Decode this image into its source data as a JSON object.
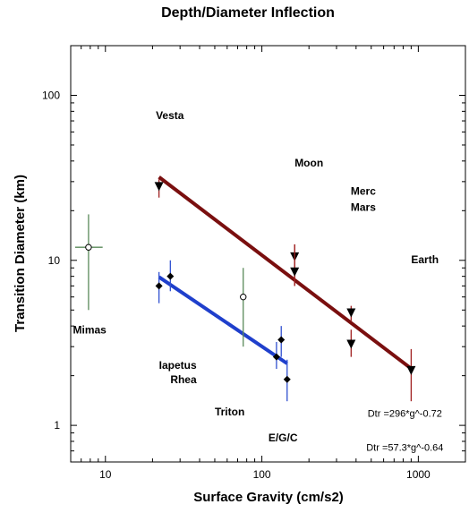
{
  "chart_data": {
    "type": "scatter",
    "title": "Depth/Diameter Inflection",
    "xlabel": "Surface Gravity (cm/s2)",
    "ylabel": "Transition Diameter (km)",
    "xscale": "log",
    "yscale": "log",
    "xlim": [
      6,
      2000
    ],
    "ylim": [
      0.6,
      200
    ],
    "xticks": [
      10,
      100,
      1000
    ],
    "xtick_labels": [
      "10",
      "100",
      "1000"
    ],
    "yticks": [
      1,
      10,
      100
    ],
    "ytick_labels": [
      "1",
      "10",
      "100"
    ],
    "grid": false,
    "colors": {
      "red_fit": "#7a0f0f",
      "blue_fit": "#1f3fcc",
      "red_err": "#a02020",
      "blue_err": "#3050d0",
      "green_err": "#5a8a5a",
      "marker": "#000000"
    },
    "annotations": [
      {
        "text": "Vesta",
        "x": 21,
        "y": 72
      },
      {
        "text": "Moon",
        "x": 162,
        "y": 37
      },
      {
        "text": "Merc",
        "x": 370,
        "y": 25
      },
      {
        "text": "Mars",
        "x": 370,
        "y": 20
      },
      {
        "text": "Earth",
        "x": 900,
        "y": 9.6
      },
      {
        "text": "Mimas",
        "x": 6.2,
        "y": 3.6
      },
      {
        "text": "Iapetus",
        "x": 22,
        "y": 2.2
      },
      {
        "text": "Rhea",
        "x": 26,
        "y": 1.8
      },
      {
        "text": "Triton",
        "x": 50,
        "y": 1.15
      },
      {
        "text": "E/G/C",
        "x": 110,
        "y": 0.8
      }
    ],
    "equations": [
      {
        "text": "Dtr =296*g^-0.72",
        "x": 820,
        "y": 1.13
      },
      {
        "text": "Dtr =57.3*g^-0.64",
        "x": 820,
        "y": 0.7
      }
    ],
    "series": [
      {
        "marker": "triangle-down",
        "color": "#000000",
        "err_color": "#a02020",
        "points": [
          {
            "x": 22,
            "y": 28,
            "ylo": 24,
            "yhi": 31
          },
          {
            "x": 162,
            "y": 10.5,
            "ylo": 7,
            "yhi": 12.5
          },
          {
            "x": 162,
            "y": 8.5,
            "ylo": 7,
            "yhi": 12.5
          },
          {
            "x": 372,
            "y": 4.8,
            "ylo": 4.3,
            "yhi": 5.3
          },
          {
            "x": 372,
            "y": 3.1,
            "ylo": 2.6,
            "yhi": 3.8
          },
          {
            "x": 900,
            "y": 2.15,
            "ylo": 1.4,
            "yhi": 2.9
          }
        ]
      },
      {
        "marker": "diamond",
        "color": "#000000",
        "err_color": "#3050d0",
        "points": [
          {
            "x": 22,
            "y": 7,
            "ylo": 5.5,
            "yhi": 8.5
          },
          {
            "x": 26,
            "y": 8,
            "ylo": 6.5,
            "yhi": 10
          },
          {
            "x": 124,
            "y": 2.6,
            "ylo": 2.2,
            "yhi": 3.2
          },
          {
            "x": 133,
            "y": 3.3,
            "ylo": 2.6,
            "yhi": 4
          },
          {
            "x": 145,
            "y": 1.9,
            "ylo": 1.4,
            "yhi": 2.5
          }
        ]
      },
      {
        "marker": "circle-open",
        "color": "#000000",
        "err_color": "#5a8a5a",
        "points": [
          {
            "x": 7.8,
            "y": 12,
            "ylo": 5,
            "yhi": 19,
            "xlo": 6.4,
            "xhi": 9.6
          },
          {
            "x": 76,
            "y": 6,
            "ylo": 3,
            "yhi": 9
          }
        ]
      }
    ],
    "fits": [
      {
        "a": 296,
        "b": -0.72,
        "x_range": [
          22,
          920
        ],
        "color": "#7a0f0f"
      },
      {
        "a": 57.3,
        "b": -0.64,
        "x_range": [
          22,
          145
        ],
        "color": "#1f3fcc"
      }
    ]
  }
}
